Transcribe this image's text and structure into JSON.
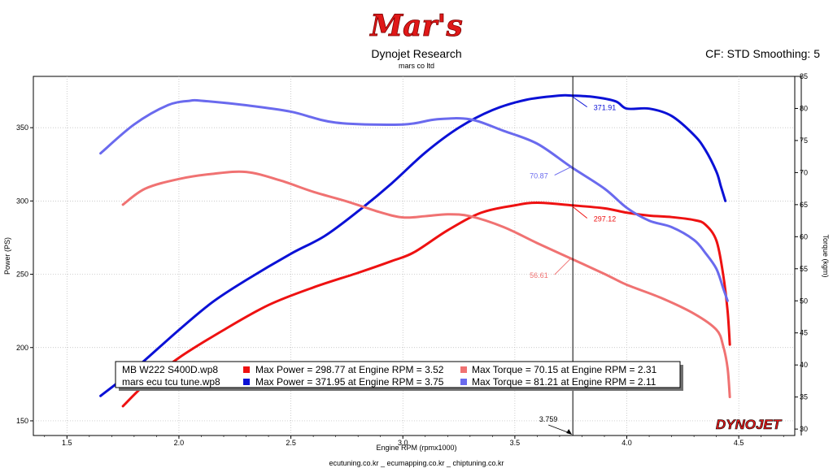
{
  "logo": {
    "text": "Mar's"
  },
  "header": {
    "title": "Dynojet Research",
    "subtitle": "mars co ltd",
    "settings": "CF: STD Smoothing: 5"
  },
  "footer": {
    "text": "ecutuning.co.kr _ ecumapping.co.kr _ chiptuning.co.kr",
    "brand": "DYNOJET"
  },
  "colors": {
    "power_stock": "#ee1111",
    "power_tune": "#0b11d6",
    "torque_stock": "#f07272",
    "torque_tune": "#6a6aee"
  },
  "legend": {
    "rows": [
      {
        "file": "MB W222 S400D.wp8",
        "power": "Max Power = 298.77 at Engine RPM = 3.52",
        "torque": "Max Torque = 70.15 at Engine RPM = 2.31"
      },
      {
        "file": "mars ecu tcu tune.wp8",
        "power": "Max Power = 371.95 at Engine RPM = 3.75",
        "torque": "Max Torque = 81.21 at Engine RPM = 2.11"
      }
    ]
  },
  "cursor": {
    "rpm": 3.759,
    "label": "3.759"
  },
  "chart_data": {
    "type": "line",
    "xlabel": "Engine RPM (rpmx1000)",
    "ylabel_left": "Power (PS)",
    "ylabel_right": "Torque (kgm)",
    "xlim": [
      1.35,
      4.75
    ],
    "ylim_left": [
      140,
      385
    ],
    "ylim_right": [
      29,
      85
    ],
    "xticks": [
      "1.5",
      "2.0",
      "2.5",
      "3.0",
      "3.5",
      "4.0",
      "4.5"
    ],
    "yticks_left": [
      "150",
      "200",
      "250",
      "300",
      "350"
    ],
    "yticks_right": [
      "30",
      "35",
      "40",
      "45",
      "50",
      "55",
      "60",
      "65",
      "70",
      "75",
      "80",
      "85"
    ],
    "grid": true,
    "series": [
      {
        "name": "MB W222 S400D.wp8",
        "quantity": "power",
        "axis": "left",
        "x": [
          1.75,
          1.85,
          2.0,
          2.2,
          2.4,
          2.6,
          2.8,
          2.95,
          3.05,
          3.2,
          3.35,
          3.5,
          3.6,
          3.75,
          3.9,
          4.0,
          4.1,
          4.2,
          4.3,
          4.35,
          4.4,
          4.43,
          4.45,
          4.46
        ],
        "y": [
          160,
          175,
          193,
          212,
          229,
          241,
          251,
          259,
          265,
          280,
          292,
          297,
          298.8,
          297.1,
          295,
          292,
          290,
          289,
          287,
          284,
          273,
          250,
          225,
          202
        ]
      },
      {
        "name": "mars ecu tcu tune.wp8",
        "quantity": "power",
        "axis": "left",
        "x": [
          1.65,
          1.8,
          2.0,
          2.15,
          2.3,
          2.5,
          2.65,
          2.8,
          2.95,
          3.1,
          3.25,
          3.4,
          3.55,
          3.7,
          3.75,
          3.85,
          3.95,
          4.0,
          4.1,
          4.2,
          4.3,
          4.35,
          4.4,
          4.42,
          4.44
        ],
        "y": [
          167,
          185,
          212,
          231,
          246,
          264,
          276,
          293,
          312,
          333,
          350,
          362,
          369,
          371.9,
          371.9,
          371,
          368,
          363,
          363,
          358,
          345,
          335,
          320,
          310,
          300
        ]
      },
      {
        "name": "MB W222 S400D.wp8",
        "quantity": "torque",
        "axis": "right",
        "x": [
          1.75,
          1.85,
          2.0,
          2.15,
          2.3,
          2.45,
          2.6,
          2.75,
          2.9,
          3.0,
          3.1,
          3.2,
          3.3,
          3.45,
          3.6,
          3.75,
          3.9,
          4.0,
          4.15,
          4.3,
          4.4,
          4.43,
          4.45,
          4.46
        ],
        "y": [
          65,
          67.5,
          69,
          69.8,
          70.1,
          68.8,
          67,
          65.5,
          63.8,
          63,
          63.2,
          63.5,
          63.2,
          61.5,
          59,
          56.6,
          54.2,
          52.5,
          50.5,
          48,
          45.5,
          43,
          39.5,
          35
        ]
      },
      {
        "name": "mars ecu tcu tune.wp8",
        "quantity": "torque",
        "axis": "right",
        "x": [
          1.65,
          1.8,
          1.95,
          2.05,
          2.1,
          2.3,
          2.5,
          2.7,
          3.0,
          3.15,
          3.3,
          3.45,
          3.6,
          3.75,
          3.9,
          4.0,
          4.1,
          4.2,
          4.3,
          4.35,
          4.4,
          4.43,
          4.45
        ],
        "y": [
          73,
          77.5,
          80.5,
          81.2,
          81.2,
          80.5,
          79.5,
          77.8,
          77.5,
          78.3,
          78.3,
          76.5,
          74.5,
          70.9,
          67.5,
          64.5,
          62.5,
          61.5,
          59.5,
          57.5,
          55,
          52,
          50
        ]
      }
    ],
    "annotations": [
      {
        "text": "371.91",
        "x": 3.75,
        "y": 371.91,
        "axis": "left",
        "series": 1
      },
      {
        "text": "297.12",
        "x": 3.75,
        "y": 297.12,
        "axis": "left",
        "series": 0
      },
      {
        "text": "70.87",
        "x": 3.75,
        "y": 70.87,
        "axis": "right",
        "series": 3
      },
      {
        "text": "56.61",
        "x": 3.75,
        "y": 56.61,
        "axis": "right",
        "series": 2
      }
    ]
  }
}
